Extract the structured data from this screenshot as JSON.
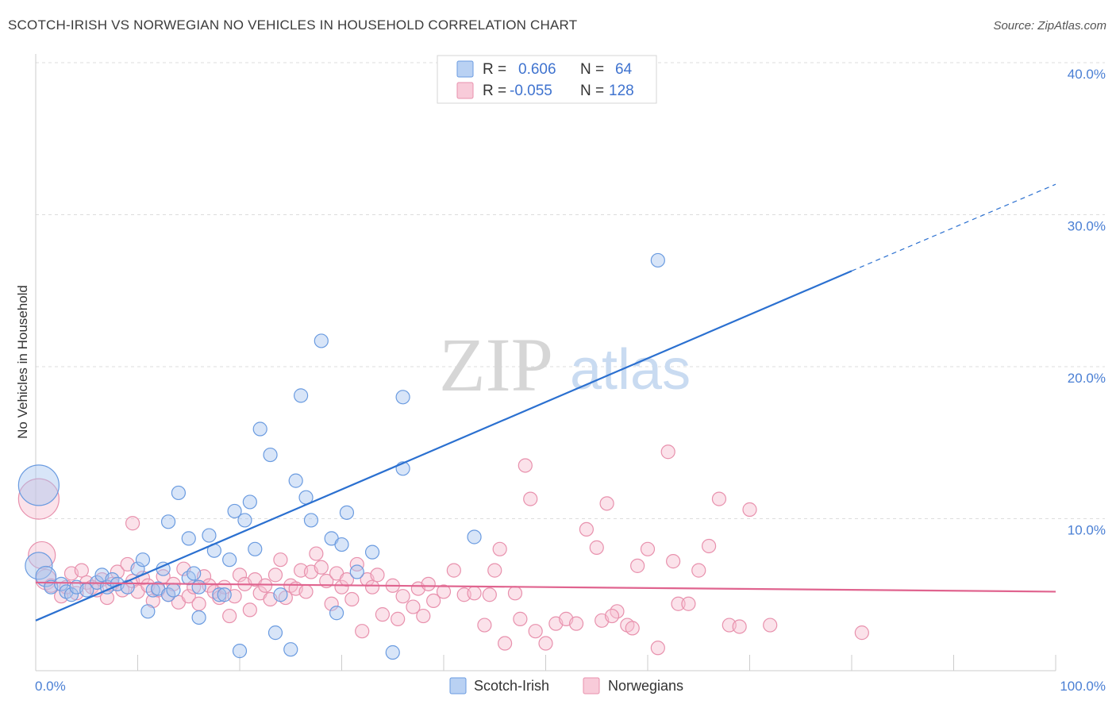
{
  "header": {
    "title": "SCOTCH-IRISH VS NORWEGIAN NO VEHICLES IN HOUSEHOLD CORRELATION CHART",
    "source": "Source: ZipAtlas.com"
  },
  "watermark": {
    "zip": "ZIP",
    "atlas": "atlas"
  },
  "colors": {
    "blue_fill": "#a9c6ef",
    "blue_stroke": "#6a9be0",
    "blue_line": "#2b70d0",
    "pink_fill": "#f6bfd0",
    "pink_stroke": "#e891ad",
    "pink_line": "#e0648f",
    "tick": "#4a7fd4",
    "grid": "#dddddd"
  },
  "legend": {
    "rows": [
      {
        "r_label": "R =",
        "r_value": "0.606",
        "n_label": "N =",
        "n_value": "64"
      },
      {
        "r_label": "R =",
        "r_value": "-0.055",
        "n_label": "N =",
        "n_value": "128"
      }
    ]
  },
  "bottom_legend": {
    "items": [
      "Scotch-Irish",
      "Norwegians"
    ]
  },
  "chart_data": {
    "type": "scatter",
    "title": "SCOTCH-IRISH VS NORWEGIAN NO VEHICLES IN HOUSEHOLD CORRELATION CHART",
    "xlabel": "",
    "ylabel": "No Vehicles in Household",
    "xlim": [
      0,
      100
    ],
    "ylim": [
      0,
      40
    ],
    "x_tick_labels": [
      "0.0%",
      "100.0%"
    ],
    "y_ticks": [
      10,
      20,
      30,
      40
    ],
    "y_tick_labels": [
      "10.0%",
      "20.0%",
      "30.0%",
      "40.0%"
    ],
    "x_minor_ticks": [
      10,
      20,
      30,
      40,
      50,
      60,
      70,
      80,
      90,
      100
    ],
    "grid": true,
    "series": [
      {
        "name": "Scotch-Irish",
        "color": "blue",
        "trend": {
          "x0": 0,
          "y0": 3.3,
          "x1": 80,
          "y1": 26.3,
          "x_dash_end": 100,
          "y_dash_end": 32.0
        },
        "points": [
          [
            0.3,
            12.2,
            3
          ],
          [
            0.3,
            6.9,
            2
          ],
          [
            1.0,
            6.2,
            1.5
          ],
          [
            1.5,
            5.5,
            1
          ],
          [
            2.5,
            5.7,
            1
          ],
          [
            3.0,
            5.2,
            1
          ],
          [
            3.5,
            5.0,
            1
          ],
          [
            4.0,
            5.5,
            1
          ],
          [
            5.0,
            5.3,
            1
          ],
          [
            6.0,
            5.8,
            1
          ],
          [
            6.5,
            6.3,
            1
          ],
          [
            7.0,
            5.5,
            1
          ],
          [
            7.5,
            6.0,
            1
          ],
          [
            8.0,
            5.7,
            1
          ],
          [
            9.0,
            5.5,
            1
          ],
          [
            10.0,
            6.7,
            1
          ],
          [
            10.5,
            7.3,
            1
          ],
          [
            11.0,
            3.9,
            1
          ],
          [
            11.5,
            5.3,
            1
          ],
          [
            12.0,
            5.4,
            1
          ],
          [
            12.5,
            6.7,
            1
          ],
          [
            13.0,
            5.0,
            1
          ],
          [
            13.5,
            5.3,
            1
          ],
          [
            13.0,
            9.8,
            1
          ],
          [
            14.0,
            11.7,
            1
          ],
          [
            15.0,
            6.1,
            1
          ],
          [
            15.0,
            8.7,
            1
          ],
          [
            15.5,
            6.4,
            1
          ],
          [
            16.0,
            5.5,
            1
          ],
          [
            16.0,
            3.5,
            1
          ],
          [
            17.0,
            8.9,
            1
          ],
          [
            17.5,
            7.9,
            1
          ],
          [
            18.0,
            5.0,
            1
          ],
          [
            18.5,
            5.0,
            1
          ],
          [
            19.0,
            7.3,
            1
          ],
          [
            19.5,
            10.5,
            1
          ],
          [
            20.0,
            1.3,
            1
          ],
          [
            20.5,
            9.9,
            1
          ],
          [
            21.0,
            11.1,
            1
          ],
          [
            21.5,
            8.0,
            1
          ],
          [
            22.0,
            15.9,
            1
          ],
          [
            23.0,
            14.2,
            1
          ],
          [
            23.5,
            2.5,
            1
          ],
          [
            24.0,
            5.0,
            1
          ],
          [
            25.0,
            1.4,
            1
          ],
          [
            25.5,
            12.5,
            1
          ],
          [
            26.0,
            18.1,
            1
          ],
          [
            26.5,
            11.4,
            1
          ],
          [
            27.0,
            9.9,
            1
          ],
          [
            28.0,
            21.7,
            1
          ],
          [
            29.0,
            8.7,
            1
          ],
          [
            29.5,
            3.8,
            1
          ],
          [
            30.0,
            8.3,
            1
          ],
          [
            30.5,
            10.4,
            1
          ],
          [
            31.5,
            6.5,
            1
          ],
          [
            33.0,
            7.8,
            1
          ],
          [
            35.0,
            1.2,
            1
          ],
          [
            36.0,
            18.0,
            1
          ],
          [
            36.0,
            13.3,
            1
          ],
          [
            43.0,
            8.8,
            1
          ],
          [
            61.0,
            27.0,
            1
          ]
        ]
      },
      {
        "name": "Norwegians",
        "color": "pink",
        "trend": {
          "x0": 0,
          "y0": 5.8,
          "x1": 100,
          "y1": 5.2
        },
        "points": [
          [
            0.3,
            11.3,
            3
          ],
          [
            0.6,
            7.6,
            2
          ],
          [
            1.0,
            6.0,
            1.5
          ],
          [
            1.5,
            5.6,
            1
          ],
          [
            2.5,
            4.9,
            1
          ],
          [
            3.0,
            5.5,
            1
          ],
          [
            3.5,
            6.4,
            1
          ],
          [
            4.0,
            5.1,
            1
          ],
          [
            4.5,
            6.6,
            1
          ],
          [
            5.0,
            5.8,
            1
          ],
          [
            5.5,
            5.5,
            1
          ],
          [
            6.0,
            5.3,
            1
          ],
          [
            6.5,
            6.0,
            1
          ],
          [
            7.0,
            4.8,
            1
          ],
          [
            7.5,
            5.7,
            1
          ],
          [
            8.0,
            6.5,
            1
          ],
          [
            8.5,
            5.3,
            1
          ],
          [
            9.0,
            7.0,
            1
          ],
          [
            9.5,
            5.9,
            1
          ],
          [
            9.5,
            9.7,
            1
          ],
          [
            10.0,
            5.2,
            1
          ],
          [
            10.5,
            6.1,
            1
          ],
          [
            11.0,
            5.6,
            1
          ],
          [
            11.5,
            4.6,
            1
          ],
          [
            12.0,
            5.3,
            1
          ],
          [
            12.5,
            6.2,
            1
          ],
          [
            13.0,
            5.0,
            1
          ],
          [
            13.5,
            5.7,
            1
          ],
          [
            14.0,
            4.5,
            1
          ],
          [
            14.5,
            6.7,
            1
          ],
          [
            15.0,
            4.9,
            1
          ],
          [
            15.5,
            5.5,
            1
          ],
          [
            16.0,
            4.4,
            1
          ],
          [
            16.5,
            6.2,
            1
          ],
          [
            17.0,
            5.6,
            1
          ],
          [
            17.5,
            5.2,
            1
          ],
          [
            18.0,
            4.8,
            1
          ],
          [
            18.5,
            5.5,
            1
          ],
          [
            19.0,
            3.6,
            1
          ],
          [
            19.5,
            4.9,
            1
          ],
          [
            20.0,
            6.3,
            1
          ],
          [
            20.5,
            5.7,
            1
          ],
          [
            21.0,
            4.0,
            1
          ],
          [
            21.5,
            6.0,
            1
          ],
          [
            22.0,
            5.1,
            1
          ],
          [
            22.5,
            5.6,
            1
          ],
          [
            23.0,
            4.7,
            1
          ],
          [
            23.5,
            6.3,
            1
          ],
          [
            24.0,
            7.3,
            1
          ],
          [
            24.5,
            4.8,
            1
          ],
          [
            25.0,
            5.6,
            1
          ],
          [
            25.5,
            5.4,
            1
          ],
          [
            26.0,
            6.6,
            1
          ],
          [
            26.5,
            5.2,
            1
          ],
          [
            27.0,
            6.5,
            1
          ],
          [
            27.5,
            7.7,
            1
          ],
          [
            28.0,
            6.8,
            1
          ],
          [
            28.5,
            5.9,
            1
          ],
          [
            29.0,
            4.4,
            1
          ],
          [
            29.5,
            6.4,
            1
          ],
          [
            30.0,
            5.5,
            1
          ],
          [
            30.5,
            6.0,
            1
          ],
          [
            31.0,
            4.7,
            1
          ],
          [
            31.5,
            7.0,
            1
          ],
          [
            32.0,
            2.6,
            1
          ],
          [
            32.5,
            6.0,
            1
          ],
          [
            33.0,
            5.5,
            1
          ],
          [
            33.5,
            6.3,
            1
          ],
          [
            34.0,
            3.7,
            1
          ],
          [
            35.0,
            5.6,
            1
          ],
          [
            35.5,
            3.4,
            1
          ],
          [
            36.0,
            4.9,
            1
          ],
          [
            37.0,
            4.2,
            1
          ],
          [
            37.5,
            5.4,
            1
          ],
          [
            38.0,
            3.6,
            1
          ],
          [
            38.5,
            5.7,
            1
          ],
          [
            39.0,
            4.6,
            1
          ],
          [
            40.0,
            5.2,
            1
          ],
          [
            41.0,
            6.6,
            1
          ],
          [
            42.0,
            5.0,
            1
          ],
          [
            43.0,
            5.1,
            1
          ],
          [
            44.0,
            3.0,
            1
          ],
          [
            45.0,
            6.6,
            1
          ],
          [
            45.5,
            8.0,
            1
          ],
          [
            46.0,
            1.8,
            1
          ],
          [
            47.0,
            5.1,
            1
          ],
          [
            47.5,
            3.4,
            1
          ],
          [
            48.0,
            13.5,
            1
          ],
          [
            48.5,
            11.3,
            1
          ],
          [
            49.0,
            2.6,
            1
          ],
          [
            50.0,
            1.8,
            1
          ],
          [
            51.0,
            3.1,
            1
          ],
          [
            52.0,
            3.4,
            1
          ],
          [
            53.0,
            3.1,
            1
          ],
          [
            54.0,
            9.3,
            1
          ],
          [
            55.0,
            8.1,
            1
          ],
          [
            55.5,
            3.3,
            1
          ],
          [
            56.0,
            11.0,
            1
          ],
          [
            57.0,
            3.9,
            1
          ],
          [
            58.0,
            3.0,
            1
          ],
          [
            58.5,
            2.8,
            1
          ],
          [
            59.0,
            6.9,
            1
          ],
          [
            60.0,
            8.0,
            1
          ],
          [
            61.0,
            1.5,
            1
          ],
          [
            62.0,
            14.4,
            1
          ],
          [
            62.5,
            7.2,
            1
          ],
          [
            63.0,
            4.4,
            1
          ],
          [
            64.0,
            4.4,
            1
          ],
          [
            65.0,
            6.6,
            1
          ],
          [
            66.0,
            8.2,
            1
          ],
          [
            67.0,
            11.3,
            1
          ],
          [
            68.0,
            3.0,
            1
          ],
          [
            69.0,
            2.9,
            1
          ],
          [
            70.0,
            10.6,
            1
          ],
          [
            72.0,
            3.0,
            1
          ],
          [
            81.0,
            2.5,
            1
          ],
          [
            56.5,
            3.6,
            1
          ],
          [
            44.5,
            5.0,
            1
          ]
        ]
      }
    ]
  }
}
